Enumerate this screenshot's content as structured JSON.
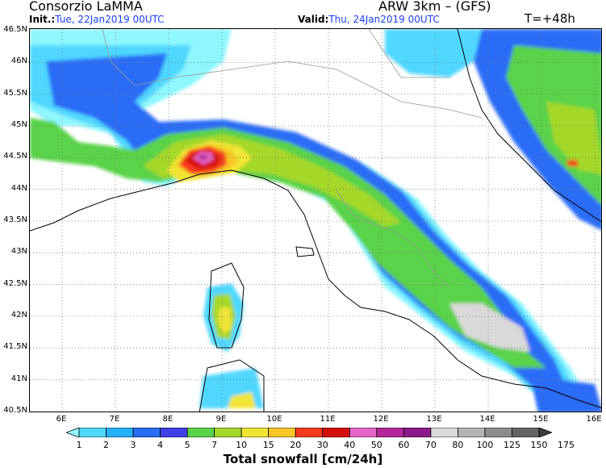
{
  "header": {
    "title": "Consorzio LaMMA",
    "model": "ARW 3km – (GFS)",
    "init_label": "Init.:",
    "init_value": "Tue, 22Jan2019 00UTC",
    "valid_label": "Valid:",
    "valid_value": "Thu, 24Jan2019 00UTC",
    "lead_time": "T=+48h"
  },
  "axes": {
    "lat_labels": [
      "46.5N",
      "46N",
      "45.5N",
      "45N",
      "44.5N",
      "44N",
      "43.5N",
      "43N",
      "42.5N",
      "42N",
      "41.5N",
      "41N",
      "40.5N"
    ],
    "lon_labels": [
      "6E",
      "7E",
      "8E",
      "9E",
      "10E",
      "11E",
      "12E",
      "13E",
      "14E",
      "15E",
      "16E"
    ],
    "gridlines": "dotted"
  },
  "colorbar": {
    "title": "Total snowfall [cm/24h]",
    "levels": [
      "1",
      "2",
      "3",
      "4",
      "5",
      "7",
      "10",
      "15",
      "20",
      "30",
      "40",
      "50",
      "60",
      "70",
      "80",
      "100",
      "125",
      "150",
      "175"
    ],
    "colors": [
      "#8ff7ff",
      "#4fd7ff",
      "#24b1f5",
      "#2a6cf5",
      "#4040e6",
      "#5ad24a",
      "#a6d829",
      "#f1e534",
      "#f9c628",
      "#f43a1e",
      "#d50f0f",
      "#e466c9",
      "#b4279a",
      "#8b1a8a",
      "#d9d9d9",
      "#b4b4b4",
      "#8c8c8c",
      "#646464",
      "#3c3c3c"
    ]
  }
}
